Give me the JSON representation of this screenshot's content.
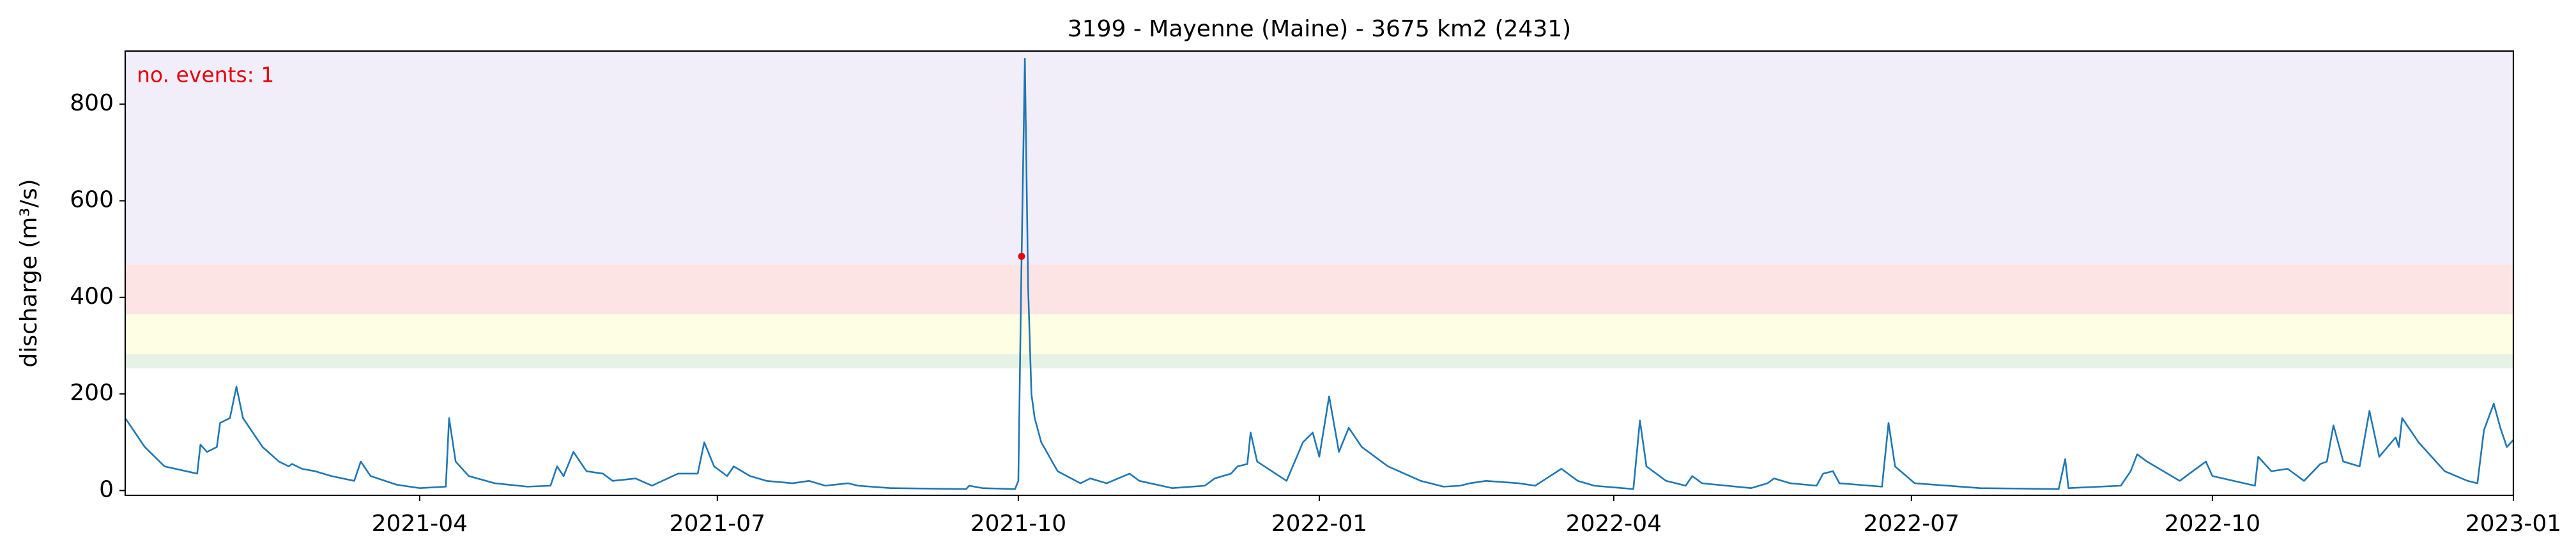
{
  "chart_data": {
    "type": "line",
    "title": "3199 - Mayenne (Maine) - 3675 km2 (2431)",
    "ylabel": "discharge (m³/s)",
    "annotation": "no. events: 1",
    "annotation_color": "#e8000b",
    "xlim": [
      "2021-01-01",
      "2023-01-01"
    ],
    "xticks": [
      {
        "value": "2021-04-01",
        "label": "2021-04"
      },
      {
        "value": "2021-07-01",
        "label": "2021-07"
      },
      {
        "value": "2021-10-01",
        "label": "2021-10"
      },
      {
        "value": "2022-01-01",
        "label": "2022-01"
      },
      {
        "value": "2022-04-01",
        "label": "2022-04"
      },
      {
        "value": "2022-07-01",
        "label": "2022-07"
      },
      {
        "value": "2022-10-01",
        "label": "2022-10"
      },
      {
        "value": "2023-01-01",
        "label": "2023-01"
      }
    ],
    "ylim": [
      -10,
      910
    ],
    "yticks": [
      0,
      200,
      400,
      600,
      800
    ],
    "bands": [
      {
        "from": 253,
        "to": 283,
        "color": "#e6f2e6"
      },
      {
        "from": 283,
        "to": 365,
        "color": "#fefee4"
      },
      {
        "from": 365,
        "to": 468,
        "color": "#fde4e4"
      },
      {
        "from": 468,
        "to": 910,
        "color": "#f1eefa"
      }
    ],
    "events": [
      {
        "x": "2021-10-02",
        "value": 485,
        "color": "#e8000b"
      }
    ],
    "x": [
      "2021-01-01",
      "2021-01-07",
      "2021-01-13",
      "2021-01-21",
      "2021-01-23",
      "2021-01-24",
      "2021-01-26",
      "2021-01-29",
      "2021-01-30",
      "2021-02-02",
      "2021-02-04",
      "2021-02-06",
      "2021-02-08",
      "2021-02-12",
      "2021-02-17",
      "2021-02-20",
      "2021-02-21",
      "2021-02-24",
      "2021-02-28",
      "2021-03-05",
      "2021-03-12",
      "2021-03-14",
      "2021-03-17",
      "2021-03-25",
      "2021-04-01",
      "2021-04-09",
      "2021-04-10",
      "2021-04-12",
      "2021-04-16",
      "2021-04-24",
      "2021-05-04",
      "2021-05-11",
      "2021-05-13",
      "2021-05-15",
      "2021-05-18",
      "2021-05-22",
      "2021-05-27",
      "2021-05-30",
      "2021-06-06",
      "2021-06-11",
      "2021-06-19",
      "2021-06-25",
      "2021-06-27",
      "2021-06-30",
      "2021-07-04",
      "2021-07-06",
      "2021-07-11",
      "2021-07-16",
      "2021-07-24",
      "2021-07-29",
      "2021-08-03",
      "2021-08-10",
      "2021-08-13",
      "2021-08-23",
      "2021-09-15",
      "2021-09-16",
      "2021-09-20",
      "2021-09-30",
      "2021-10-01",
      "2021-10-02",
      "2021-10-03",
      "2021-10-04",
      "2021-10-05",
      "2021-10-06",
      "2021-10-08",
      "2021-10-13",
      "2021-10-20",
      "2021-10-23",
      "2021-10-28",
      "2021-11-04",
      "2021-11-07",
      "2021-11-17",
      "2021-11-27",
      "2021-11-30",
      "2021-12-05",
      "2021-12-07",
      "2021-12-10",
      "2021-12-11",
      "2021-12-13",
      "2021-12-22",
      "2021-12-27",
      "2021-12-30",
      "2022-01-01",
      "2022-01-04",
      "2022-01-07",
      "2022-01-10",
      "2022-01-14",
      "2022-01-22",
      "2022-02-01",
      "2022-02-08",
      "2022-02-13",
      "2022-02-16",
      "2022-02-21",
      "2022-03-03",
      "2022-03-08",
      "2022-03-16",
      "2022-03-21",
      "2022-03-26",
      "2022-04-07",
      "2022-04-09",
      "2022-04-11",
      "2022-04-17",
      "2022-04-23",
      "2022-04-25",
      "2022-04-28",
      "2022-05-13",
      "2022-05-18",
      "2022-05-20",
      "2022-05-25",
      "2022-06-02",
      "2022-06-04",
      "2022-06-07",
      "2022-06-09",
      "2022-06-22",
      "2022-06-24",
      "2022-06-26",
      "2022-07-02",
      "2022-07-22",
      "2022-08-15",
      "2022-08-17",
      "2022-08-18",
      "2022-09-03",
      "2022-09-06",
      "2022-09-08",
      "2022-09-11",
      "2022-09-16",
      "2022-09-21",
      "2022-09-29",
      "2022-10-01",
      "2022-10-14",
      "2022-10-15",
      "2022-10-19",
      "2022-10-24",
      "2022-10-29",
      "2022-11-03",
      "2022-11-05",
      "2022-11-07",
      "2022-11-10",
      "2022-11-15",
      "2022-11-18",
      "2022-11-21",
      "2022-11-26",
      "2022-11-27",
      "2022-11-28",
      "2022-12-03",
      "2022-12-11",
      "2022-12-18",
      "2022-12-21",
      "2022-12-23",
      "2022-12-26",
      "2022-12-28",
      "2022-12-30",
      "2023-01-01"
    ],
    "series": [
      {
        "color": "#1f77b4",
        "values": [
          150,
          90,
          50,
          38,
          35,
          95,
          80,
          90,
          140,
          150,
          215,
          150,
          130,
          90,
          60,
          50,
          55,
          45,
          40,
          30,
          20,
          60,
          30,
          12,
          5,
          8,
          150,
          60,
          30,
          15,
          8,
          10,
          50,
          30,
          80,
          40,
          35,
          20,
          25,
          10,
          35,
          35,
          100,
          50,
          30,
          50,
          30,
          20,
          15,
          20,
          10,
          15,
          10,
          5,
          3,
          10,
          5,
          3,
          20,
          485,
          894,
          420,
          200,
          150,
          100,
          40,
          15,
          25,
          15,
          35,
          20,
          5,
          10,
          25,
          35,
          50,
          55,
          120,
          60,
          20,
          100,
          120,
          70,
          195,
          80,
          130,
          90,
          50,
          20,
          8,
          10,
          15,
          20,
          15,
          10,
          45,
          20,
          10,
          3,
          145,
          50,
          20,
          10,
          30,
          15,
          5,
          15,
          25,
          15,
          10,
          35,
          40,
          15,
          8,
          140,
          50,
          15,
          5,
          3,
          65,
          5,
          10,
          40,
          75,
          60,
          40,
          20,
          60,
          30,
          10,
          70,
          40,
          45,
          20,
          55,
          60,
          135,
          60,
          50,
          165,
          70,
          110,
          90,
          150,
          100,
          40,
          20,
          15,
          125,
          180,
          130,
          90,
          105
        ]
      }
    ]
  }
}
